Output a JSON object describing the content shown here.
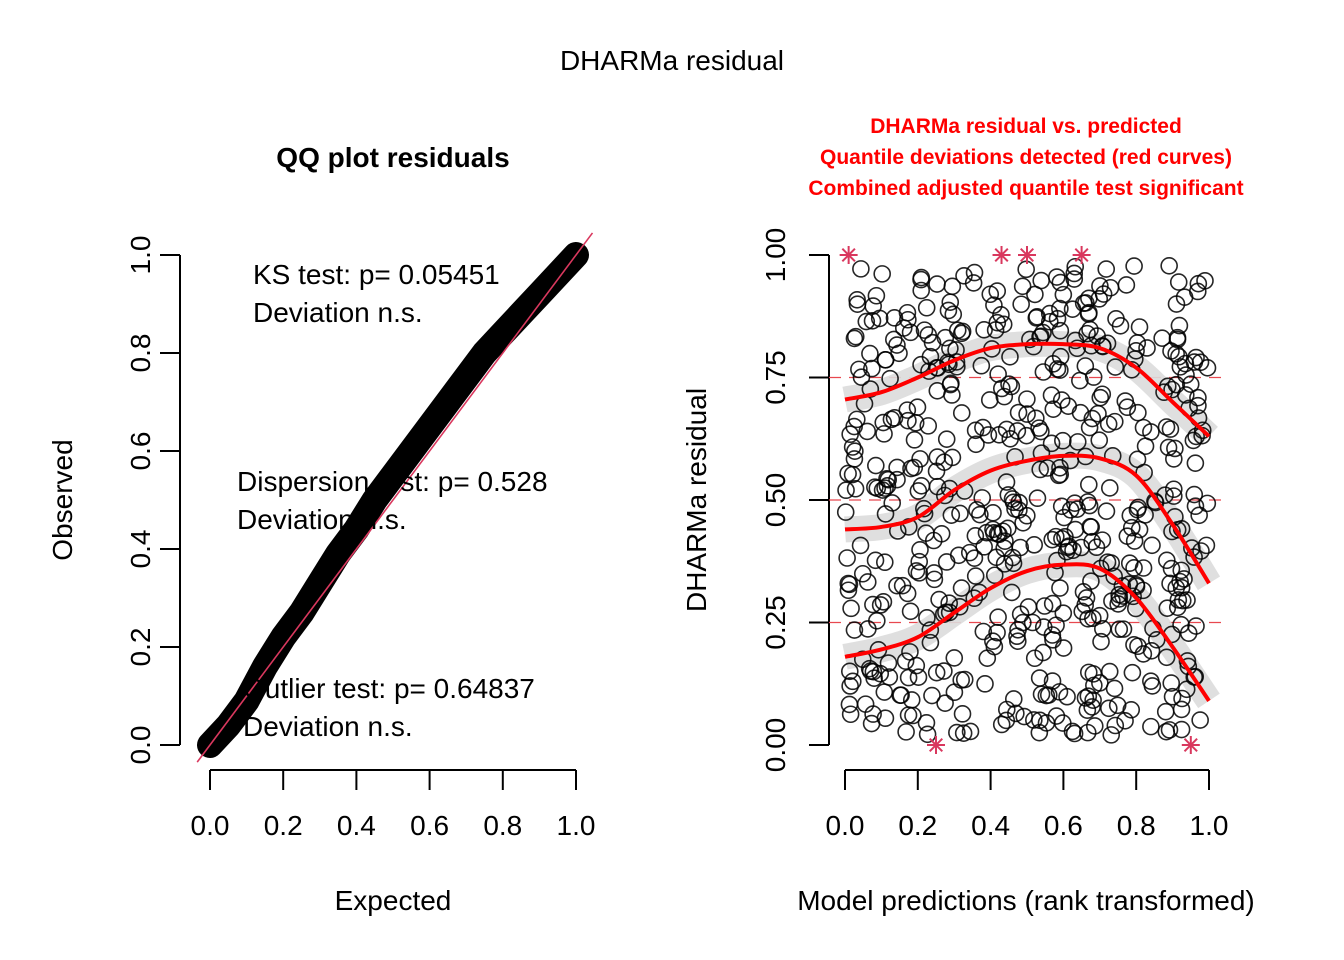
{
  "chart_data": [
    {
      "type": "scatter",
      "panel": "left",
      "title": "QQ plot residuals",
      "xlabel": "Expected",
      "ylabel": "Observed",
      "xlim": [
        0,
        1
      ],
      "ylim": [
        0,
        1
      ],
      "xticks": [
        "0.0",
        "0.2",
        "0.4",
        "0.6",
        "0.8",
        "1.0"
      ],
      "yticks": [
        "0.0",
        "0.2",
        "0.4",
        "0.6",
        "0.8",
        "1.0"
      ],
      "reference_line": {
        "slope": 1,
        "intercept": 0,
        "color": "#d9385e"
      },
      "qq_points": {
        "expected": [
          0.0,
          0.05,
          0.1,
          0.15,
          0.2,
          0.25,
          0.3,
          0.35,
          0.4,
          0.45,
          0.5,
          0.55,
          0.6,
          0.65,
          0.7,
          0.75,
          0.8,
          0.85,
          0.9,
          0.95,
          1.0
        ],
        "observed": [
          0.0,
          0.04,
          0.09,
          0.16,
          0.22,
          0.27,
          0.33,
          0.39,
          0.44,
          0.5,
          0.55,
          0.6,
          0.65,
          0.7,
          0.75,
          0.8,
          0.84,
          0.88,
          0.92,
          0.96,
          1.0
        ]
      },
      "annotations": [
        {
          "line1": "KS test: p= 0.05451",
          "line2": "Deviation  n.s."
        },
        {
          "line1": "Dispersion test: p= 0.528",
          "line2": "Deviation  n.s."
        },
        {
          "line1": "Outlier test: p= 0.64837",
          "line2": "Deviation  n.s."
        }
      ]
    },
    {
      "type": "scatter",
      "panel": "right",
      "title_lines": [
        "DHARMa residual vs. predicted",
        "Quantile deviations detected (red curves)",
        "Combined adjusted quantile test significant"
      ],
      "title_color": "#ff0000",
      "xlabel": "Model predictions (rank transformed)",
      "ylabel": "DHARMa residual",
      "xlim": [
        0,
        1
      ],
      "ylim": [
        0,
        1
      ],
      "xticks": [
        "0.0",
        "0.2",
        "0.4",
        "0.6",
        "0.8",
        "1.0"
      ],
      "yticks": [
        "0.00",
        "0.25",
        "0.50",
        "0.75",
        "1.00"
      ],
      "reference_lines": [
        0.25,
        0.5,
        0.75
      ],
      "point_count_approx": 600,
      "outliers": [
        {
          "x": 0.01,
          "y": 1.0
        },
        {
          "x": 0.43,
          "y": 1.0
        },
        {
          "x": 0.5,
          "y": 1.0
        },
        {
          "x": 0.65,
          "y": 1.0
        },
        {
          "x": 0.25,
          "y": 0.0
        },
        {
          "x": 0.95,
          "y": 0.0
        }
      ],
      "quantile_curves": [
        {
          "quantile": 0.75,
          "x": [
            0.0,
            0.1,
            0.2,
            0.3,
            0.4,
            0.5,
            0.6,
            0.7,
            0.8,
            0.9,
            1.0
          ],
          "y": [
            0.705,
            0.72,
            0.75,
            0.785,
            0.81,
            0.818,
            0.818,
            0.81,
            0.77,
            0.7,
            0.63
          ]
        },
        {
          "quantile": 0.5,
          "x": [
            0.0,
            0.1,
            0.2,
            0.3,
            0.4,
            0.5,
            0.6,
            0.7,
            0.8,
            0.9,
            1.0
          ],
          "y": [
            0.44,
            0.445,
            0.465,
            0.52,
            0.56,
            0.58,
            0.59,
            0.585,
            0.55,
            0.45,
            0.33
          ]
        },
        {
          "quantile": 0.25,
          "x": [
            0.0,
            0.1,
            0.2,
            0.3,
            0.4,
            0.5,
            0.6,
            0.7,
            0.8,
            0.9,
            1.0
          ],
          "y": [
            0.18,
            0.195,
            0.22,
            0.27,
            0.32,
            0.355,
            0.368,
            0.36,
            0.3,
            0.2,
            0.09
          ]
        }
      ]
    }
  ],
  "figure": {
    "title": "DHARMa residual"
  }
}
